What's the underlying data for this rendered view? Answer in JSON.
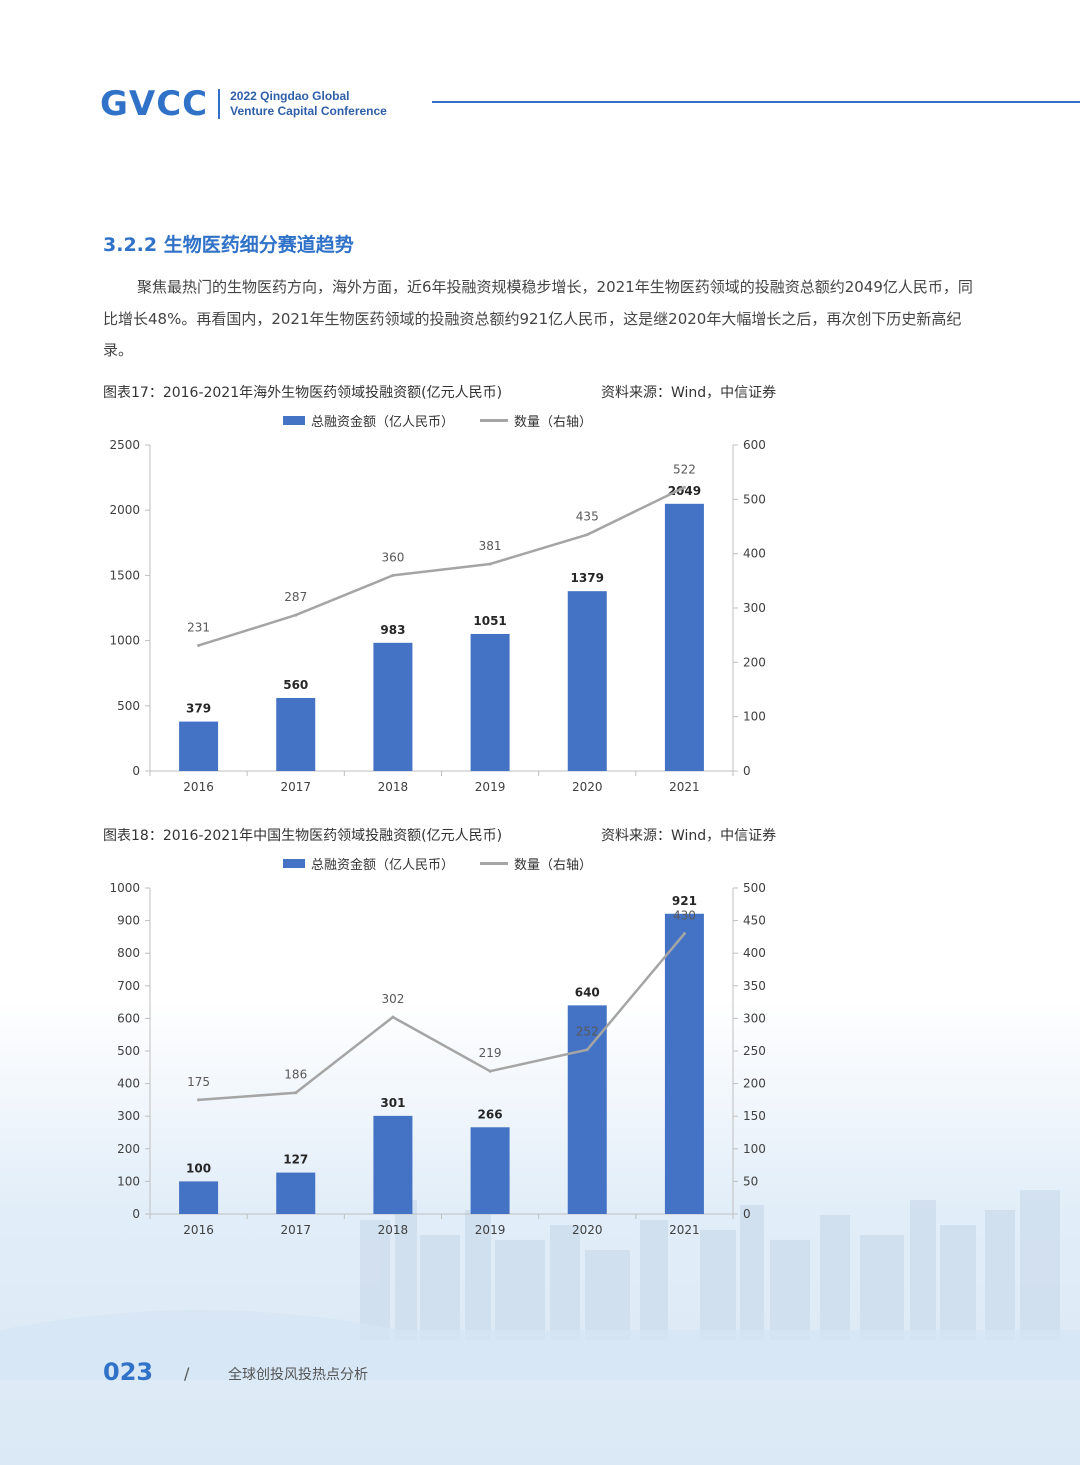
{
  "header": {
    "logo": "GVCC",
    "conference_line1": "2022 Qingdao Global",
    "conference_line2": "Venture Capital Conference"
  },
  "section": {
    "title": "3.2.2 生物医药细分赛道趋势",
    "paragraph": "聚焦最热门的生物医药方向，海外方面，近6年投融资规模稳步增长，2021年生物医药领域的投融资总额约2049亿人民币，同比增长48%。再看国内，2021年生物医药领域的投融资总额约921亿人民币，这是继2020年大幅增长之后，再次创下历史新高纪录。"
  },
  "figures": [
    {
      "caption": "图表17：2016-2021年海外生物医药领域投融资额(亿元人民币)",
      "source": "资料来源：Wind，中信证券",
      "legend_bar": "总融资金额（亿人民币）",
      "legend_line": "数量（右轴）"
    },
    {
      "caption": "图表18：2016-2021年中国生物医药领域投融资额(亿元人民币)",
      "source": "资料来源：Wind，中信证券",
      "legend_bar": "总融资金额（亿人民币）",
      "legend_line": "数量（右轴）"
    }
  ],
  "chart_data": [
    {
      "type": "bar",
      "categories": [
        "2016",
        "2017",
        "2018",
        "2019",
        "2020",
        "2021"
      ],
      "series": [
        {
          "name": "总融资金额（亿人民币）",
          "type": "bar",
          "axis": "left",
          "values": [
            379,
            560,
            983,
            1051,
            1379,
            2049
          ],
          "color": "#4472c4"
        },
        {
          "name": "数量（右轴）",
          "type": "line",
          "axis": "right",
          "values": [
            231,
            287,
            360,
            381,
            435,
            522
          ],
          "color": "#a5a5a5"
        }
      ],
      "ylim": [
        0,
        2500
      ],
      "yticks": [
        0,
        500,
        1000,
        1500,
        2000,
        2500
      ],
      "y2lim": [
        0,
        600
      ],
      "y2ticks": [
        0,
        100,
        200,
        300,
        400,
        500,
        600
      ],
      "legend": "top",
      "grid": false
    },
    {
      "type": "bar",
      "categories": [
        "2016",
        "2017",
        "2018",
        "2019",
        "2020",
        "2021"
      ],
      "series": [
        {
          "name": "总融资金额（亿人民币）",
          "type": "bar",
          "axis": "left",
          "values": [
            100,
            127,
            301,
            266,
            640,
            921
          ],
          "color": "#4472c4"
        },
        {
          "name": "数量（右轴）",
          "type": "line",
          "axis": "right",
          "values": [
            175,
            186,
            302,
            219,
            252,
            430
          ],
          "color": "#a5a5a5"
        }
      ],
      "ylim": [
        0,
        1000
      ],
      "yticks": [
        0,
        100,
        200,
        300,
        400,
        500,
        600,
        700,
        800,
        900,
        1000
      ],
      "y2lim": [
        0,
        500
      ],
      "y2ticks": [
        0,
        50,
        100,
        150,
        200,
        250,
        300,
        350,
        400,
        450,
        500
      ],
      "legend": "top",
      "grid": false
    }
  ],
  "footer": {
    "page_number": "023",
    "slash": "/",
    "title": "全球创投风投热点分析"
  },
  "colors": {
    "brand": "#2f72c8",
    "bar": "#4472c4",
    "line": "#a5a5a5"
  }
}
